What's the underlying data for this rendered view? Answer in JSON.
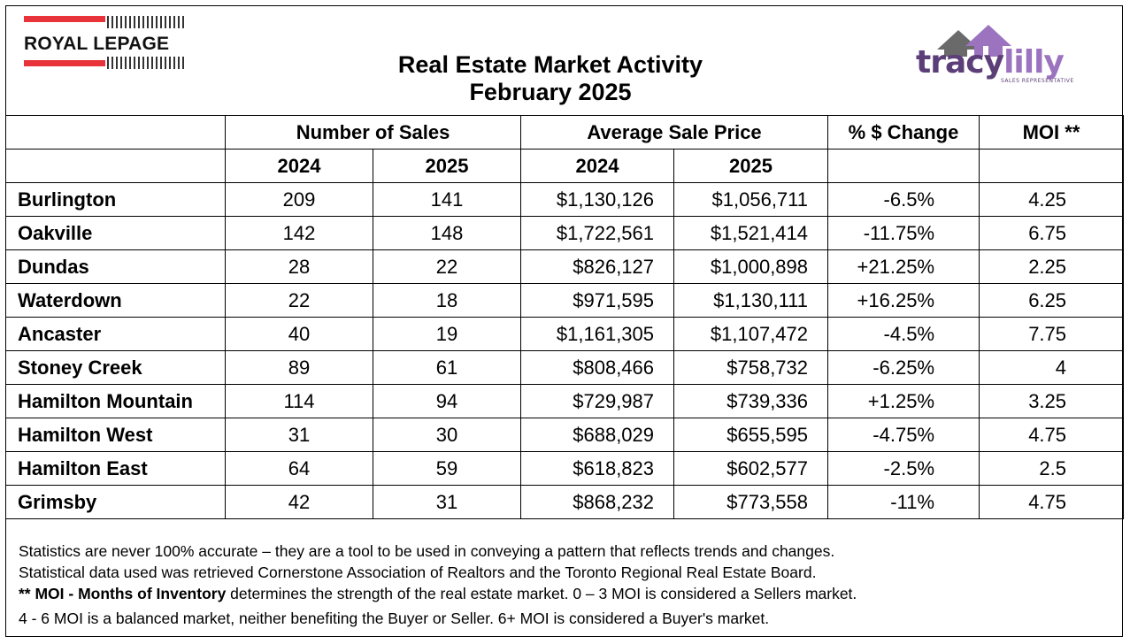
{
  "header": {
    "brand_logo_text": "ROYAL LEPAGE",
    "title_line1": "Real Estate Market Activity",
    "title_line2": "February 2025",
    "agent_logo_first": "tracy",
    "agent_logo_second": "lilly",
    "agent_logo_sub": "SALES REPRESENTATIVE"
  },
  "table": {
    "group_headers": [
      "Number of Sales",
      "Average Sale Price",
      "% $ Change",
      "MOI **"
    ],
    "year_headers": [
      "2024",
      "2025",
      "2024",
      "2025"
    ],
    "rows": [
      {
        "city": "Burlington",
        "sales_2024": "209",
        "sales_2025": "141",
        "price_2024": "$1,130,126",
        "price_2025": "$1,056,711",
        "change": "-6.5%",
        "moi": "4.25"
      },
      {
        "city": "Oakville",
        "sales_2024": "142",
        "sales_2025": "148",
        "price_2024": "$1,722,561",
        "price_2025": "$1,521,414",
        "change": "-11.75%",
        "moi": "6.75"
      },
      {
        "city": "Dundas",
        "sales_2024": "28",
        "sales_2025": "22",
        "price_2024": "$826,127",
        "price_2025": "$1,000,898",
        "change": "+21.25%",
        "moi": "2.25"
      },
      {
        "city": "Waterdown",
        "sales_2024": "22",
        "sales_2025": "18",
        "price_2024": "$971,595",
        "price_2025": "$1,130,111",
        "change": "+16.25%",
        "moi": "6.25"
      },
      {
        "city": "Ancaster",
        "sales_2024": "40",
        "sales_2025": "19",
        "price_2024": "$1,161,305",
        "price_2025": "$1,107,472",
        "change": "-4.5%",
        "moi": "7.75"
      },
      {
        "city": "Stoney Creek",
        "sales_2024": "89",
        "sales_2025": "61",
        "price_2024": "$808,466",
        "price_2025": "$758,732",
        "change": "-6.25%",
        "moi": "4"
      },
      {
        "city": "Hamilton Mountain",
        "sales_2024": "114",
        "sales_2025": "94",
        "price_2024": "$729,987",
        "price_2025": "$739,336",
        "change": "+1.25%",
        "moi": "3.25"
      },
      {
        "city": "Hamilton West",
        "sales_2024": "31",
        "sales_2025": "30",
        "price_2024": "$688,029",
        "price_2025": "$655,595",
        "change": "-4.75%",
        "moi": "4.75"
      },
      {
        "city": "Hamilton East",
        "sales_2024": "64",
        "sales_2025": "59",
        "price_2024": "$618,823",
        "price_2025": "$602,577",
        "change": "-2.5%",
        "moi": "2.5"
      },
      {
        "city": "Grimsby",
        "sales_2024": "42",
        "sales_2025": "31",
        "price_2024": "$868,232",
        "price_2025": "$773,558",
        "change": "-11%",
        "moi": "4.75"
      }
    ]
  },
  "notes": {
    "line1": "Statistics are never 100% accurate – they are a tool to be used in conveying a pattern that reflects trends and changes.",
    "line2": "Statistical data used was retrieved Cornerstone Association of Realtors and the Toronto Regional Real Estate Board.",
    "line3_bold": "** MOI - Months of Inventory",
    "line3_rest": " determines the strength of the real estate market. 0 – 3 MOI is considered a Sellers market.",
    "line4": "4 - 6 MOI is a balanced market, neither benefiting the Buyer or Seller. 6+ MOI is considered a Buyer's market."
  },
  "colors": {
    "brand_red": "#e8333b",
    "logo_purple_dark": "#5c3e78",
    "logo_purple_light": "#9b73bf"
  }
}
